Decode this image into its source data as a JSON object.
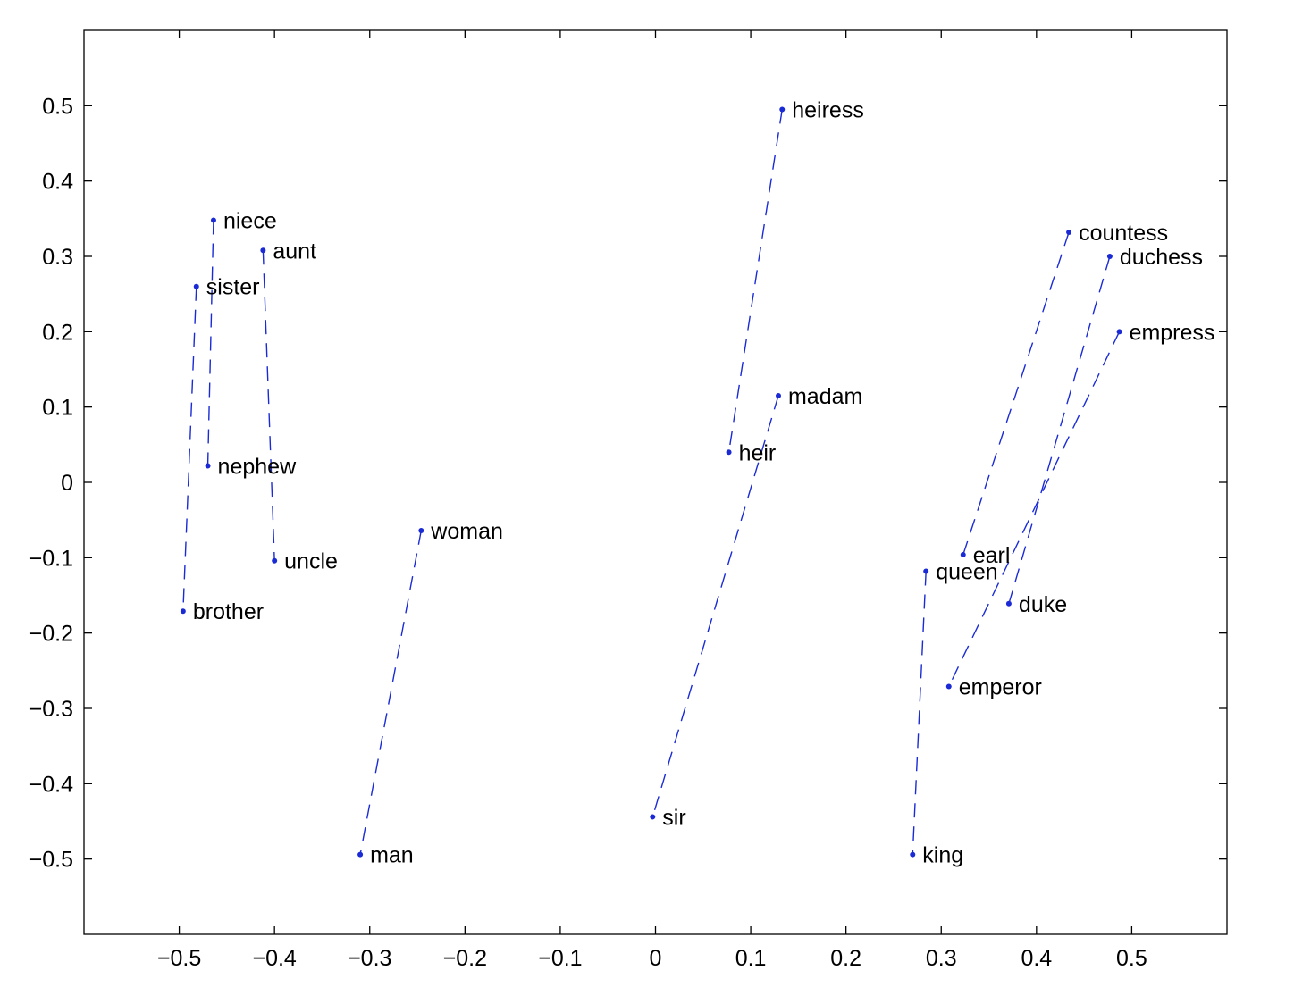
{
  "chart_data": {
    "type": "scatter",
    "title": "",
    "xlabel": "",
    "ylabel": "",
    "xlim": [
      -0.6,
      0.6
    ],
    "ylim": [
      -0.6,
      0.6
    ],
    "xticks": [
      -0.5,
      -0.4,
      -0.3,
      -0.2,
      -0.1,
      0,
      0.1,
      0.2,
      0.3,
      0.4,
      0.5
    ],
    "xtick_labels": [
      "−0.5",
      "−0.4",
      "−0.3",
      "−0.2",
      "−0.1",
      "0",
      "0.1",
      "0.2",
      "0.3",
      "0.4",
      "0.5"
    ],
    "yticks": [
      0.5,
      0.4,
      0.3,
      0.2,
      0.1,
      0,
      -0.1,
      -0.2,
      -0.3,
      -0.4,
      -0.5
    ],
    "ytick_labels": [
      "0.5",
      "0.4",
      "0.3",
      "0.2",
      "0.1",
      "0",
      "−0.1",
      "−0.2",
      "−0.3",
      "−0.4",
      "−0.5"
    ],
    "grid": false,
    "color": "#1a2bd6",
    "points": [
      {
        "word": "niece",
        "x": -0.464,
        "y": 0.348
      },
      {
        "word": "aunt",
        "x": -0.412,
        "y": 0.308
      },
      {
        "word": "sister",
        "x": -0.482,
        "y": 0.26
      },
      {
        "word": "nephew",
        "x": -0.47,
        "y": 0.022
      },
      {
        "word": "uncle",
        "x": -0.4,
        "y": -0.104
      },
      {
        "word": "brother",
        "x": -0.496,
        "y": -0.171
      },
      {
        "word": "woman",
        "x": -0.246,
        "y": -0.064
      },
      {
        "word": "man",
        "x": -0.31,
        "y": -0.494
      },
      {
        "word": "heiress",
        "x": 0.133,
        "y": 0.495
      },
      {
        "word": "madam",
        "x": 0.129,
        "y": 0.115
      },
      {
        "word": "heir",
        "x": 0.077,
        "y": 0.04
      },
      {
        "word": "sir",
        "x": -0.003,
        "y": -0.444
      },
      {
        "word": "countess",
        "x": 0.434,
        "y": 0.332
      },
      {
        "word": "duchess",
        "x": 0.477,
        "y": 0.3
      },
      {
        "word": "empress",
        "x": 0.487,
        "y": 0.2
      },
      {
        "word": "earl",
        "x": 0.323,
        "y": -0.096
      },
      {
        "word": "queen",
        "x": 0.284,
        "y": -0.118
      },
      {
        "word": "duke",
        "x": 0.371,
        "y": -0.161
      },
      {
        "word": "emperor",
        "x": 0.308,
        "y": -0.271
      },
      {
        "word": "king",
        "x": 0.27,
        "y": -0.494
      }
    ],
    "pairs": [
      [
        "niece",
        "nephew"
      ],
      [
        "aunt",
        "uncle"
      ],
      [
        "sister",
        "brother"
      ],
      [
        "woman",
        "man"
      ],
      [
        "heiress",
        "heir"
      ],
      [
        "madam",
        "sir"
      ],
      [
        "countess",
        "earl"
      ],
      [
        "duchess",
        "duke"
      ],
      [
        "empress",
        "emperor"
      ],
      [
        "queen",
        "king"
      ]
    ]
  }
}
